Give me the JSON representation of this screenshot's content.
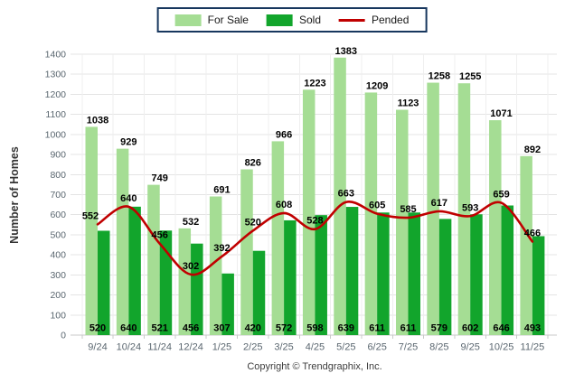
{
  "legend": {
    "items": [
      {
        "label": "For Sale",
        "swatch": "rect",
        "color": "#A5DD94"
      },
      {
        "label": "Sold",
        "swatch": "rect",
        "color": "#12A52C"
      },
      {
        "label": "Pended",
        "swatch": "line",
        "color": "#C00000"
      }
    ]
  },
  "y_axis": {
    "title": "Number of Homes"
  },
  "footer": {
    "copyright": "Copyright © Trendgraphix, Inc."
  },
  "colors": {
    "for_sale_bar": "#A5DD94",
    "sold_bar": "#12A52C",
    "pended_line": "#C00000",
    "gridline": "#E4E4E4",
    "vertical_gridline": "#EFEFEF",
    "axis_line": "#C9C9C9",
    "tick_text": "#5B6770",
    "data_label": "#000000",
    "legend_border": "#17375E"
  },
  "chart_data": {
    "type": "bar",
    "title": "",
    "xlabel": "",
    "ylabel": "Number of Homes",
    "ylim": [
      0,
      1400
    ],
    "ytick_step": 100,
    "grid": true,
    "legend_position": "top-center",
    "categories": [
      "9/24",
      "10/24",
      "11/24",
      "12/24",
      "1/25",
      "2/25",
      "3/25",
      "4/25",
      "5/25",
      "6/25",
      "7/25",
      "8/25",
      "9/25",
      "10/25",
      "11/25"
    ],
    "series": [
      {
        "name": "For Sale",
        "type": "bar",
        "color": "#A5DD94",
        "values": [
          1038,
          929,
          749,
          532,
          691,
          826,
          966,
          1223,
          1383,
          1209,
          1123,
          1258,
          1255,
          1071,
          892
        ]
      },
      {
        "name": "Sold",
        "type": "bar",
        "color": "#12A52C",
        "values": [
          520,
          640,
          521,
          456,
          307,
          420,
          572,
          598,
          639,
          611,
          611,
          579,
          602,
          646,
          493
        ]
      },
      {
        "name": "Pended",
        "type": "line",
        "color": "#C00000",
        "values": [
          552,
          640,
          456,
          302,
          392,
          520,
          608,
          528,
          663,
          605,
          585,
          617,
          593,
          659,
          466
        ]
      }
    ]
  }
}
